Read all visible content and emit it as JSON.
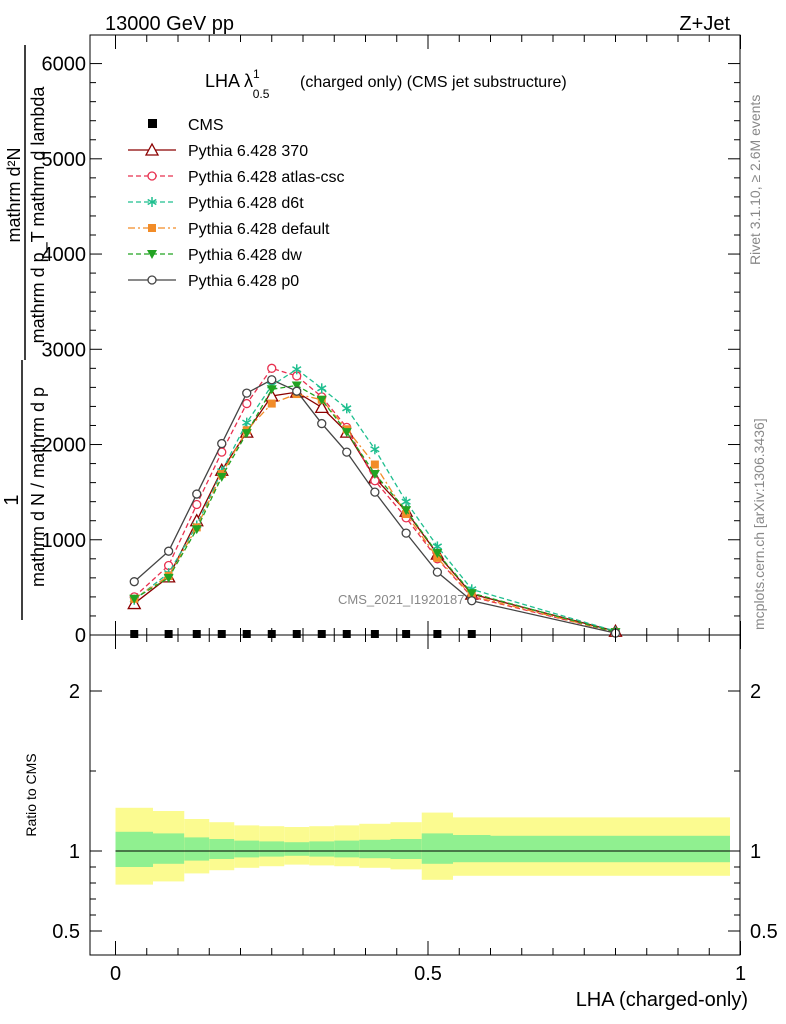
{
  "header": {
    "left": "13000 GeV pp",
    "right": "Z+Jet"
  },
  "side": {
    "rivet": "Rivet 3.1.10, ≥ 2.6M events",
    "mcplots": "mcplots.cern.ch [arXiv:1306.3436]"
  },
  "chart_data": [
    {
      "type": "line",
      "title": "LHA λ¹₀.₅ (charged only) (CMS jet substructure)",
      "title_main": "LHA λ",
      "title_sup": "1",
      "title_sub": "0.5",
      "title_rest": "(charged only) (CMS jet substructure)",
      "ylabel_lines": [
        "1",
        "mathrm d N / mathrm d p_T",
        "mathrm d^2N",
        "mathrm d p_T mathrm d lambda"
      ],
      "ylabel_num": "1",
      "ylabel_den": "mathrm d N / mathrm d p",
      "ylabel_num2": "mathrm d²N",
      "ylabel_den2": "mathrm d p_T mathrm d lambda",
      "watermark": "CMS_2021_I1920187",
      "ylim": [
        0,
        6300
      ],
      "xlim": [
        -0.02,
        1.02
      ],
      "yticks": [
        0,
        1000,
        2000,
        3000,
        4000,
        5000,
        6000
      ],
      "ytick_labels": [
        "0",
        "1000",
        "2000",
        "3000",
        "4000",
        "5000",
        "6000"
      ],
      "legend_position": "top-left",
      "x": [
        0.03,
        0.085,
        0.13,
        0.17,
        0.21,
        0.25,
        0.29,
        0.33,
        0.37,
        0.415,
        0.465,
        0.515,
        0.57,
        0.8
      ],
      "cms": {
        "name": "CMS",
        "x": [
          0.03,
          0.085,
          0.13,
          0.17,
          0.21,
          0.25,
          0.29,
          0.33,
          0.37,
          0.415,
          0.465,
          0.515,
          0.57
        ],
        "values": [
          0,
          0,
          0,
          0,
          0,
          0,
          0,
          0,
          0,
          0,
          0,
          0,
          0
        ]
      },
      "series": [
        {
          "name": "Pythia 6.428 370",
          "color": "#8b0000",
          "marker": "triangle-open",
          "dash": "solid",
          "values": [
            330,
            610,
            1200,
            1730,
            2130,
            2510,
            2550,
            2390,
            2130,
            1650,
            1300,
            850,
            430,
            40
          ]
        },
        {
          "name": "Pythia 6.428 atlas-csc",
          "color": "#e8304f",
          "marker": "circle-open",
          "dash": "dashed",
          "values": [
            400,
            730,
            1370,
            1920,
            2430,
            2800,
            2720,
            2500,
            2180,
            1620,
            1230,
            800,
            400,
            30
          ]
        },
        {
          "name": "Pythia 6.428 d6t",
          "color": "#1fbf8f",
          "marker": "star",
          "dash": "dashed",
          "values": [
            370,
            650,
            1150,
            1720,
            2230,
            2620,
            2790,
            2590,
            2380,
            1950,
            1400,
            930,
            480,
            40
          ]
        },
        {
          "name": "Pythia 6.428 default",
          "color": "#f28c28",
          "marker": "square",
          "dash": "dashdot",
          "values": [
            380,
            620,
            1130,
            1690,
            2150,
            2430,
            2530,
            2470,
            2160,
            1790,
            1270,
            810,
            410,
            30
          ]
        },
        {
          "name": "Pythia 6.428 dw",
          "color": "#22a322",
          "marker": "triangle-down",
          "dash": "dashed",
          "values": [
            380,
            600,
            1110,
            1660,
            2120,
            2580,
            2620,
            2470,
            2130,
            1690,
            1310,
            860,
            440,
            30
          ]
        },
        {
          "name": "Pythia 6.428 p0",
          "color": "#444444",
          "marker": "circle-open",
          "dash": "solid",
          "values": [
            560,
            880,
            1480,
            2010,
            2540,
            2680,
            2560,
            2220,
            1920,
            1500,
            1070,
            660,
            360,
            20
          ]
        }
      ]
    },
    {
      "type": "area",
      "ylabel": "Ratio to CMS",
      "xlabel": "LHA (charged-only)",
      "ylim": [
        0.35,
        2.35
      ],
      "xlim": [
        -0.02,
        1.02
      ],
      "xticks": [
        0,
        0.5,
        1
      ],
      "xtick_labels": [
        "0",
        "0.5",
        "1"
      ],
      "yticks": [
        0.5,
        1,
        2
      ],
      "ytick_labels": [
        "0.5",
        "1",
        "2"
      ],
      "bin_edges": [
        0.0,
        0.06,
        0.11,
        0.15,
        0.19,
        0.23,
        0.27,
        0.31,
        0.35,
        0.39,
        0.44,
        0.49,
        0.54,
        0.6,
        1.0
      ],
      "band_inner_lo": [
        0.9,
        0.92,
        0.94,
        0.95,
        0.96,
        0.965,
        0.97,
        0.965,
        0.96,
        0.955,
        0.95,
        0.92,
        0.93,
        0.93
      ],
      "band_inner_hi": [
        1.12,
        1.11,
        1.085,
        1.075,
        1.065,
        1.06,
        1.055,
        1.06,
        1.065,
        1.07,
        1.075,
        1.11,
        1.1,
        1.095
      ],
      "band_outer_lo": [
        0.79,
        0.81,
        0.86,
        0.88,
        0.895,
        0.905,
        0.915,
        0.91,
        0.905,
        0.895,
        0.885,
        0.82,
        0.845,
        0.845
      ],
      "band_outer_hi": [
        1.27,
        1.25,
        1.2,
        1.18,
        1.16,
        1.155,
        1.15,
        1.155,
        1.16,
        1.17,
        1.18,
        1.24,
        1.21,
        1.21
      ],
      "band_inner_color": "#90f090",
      "band_outer_color": "#fbfb90"
    }
  ]
}
